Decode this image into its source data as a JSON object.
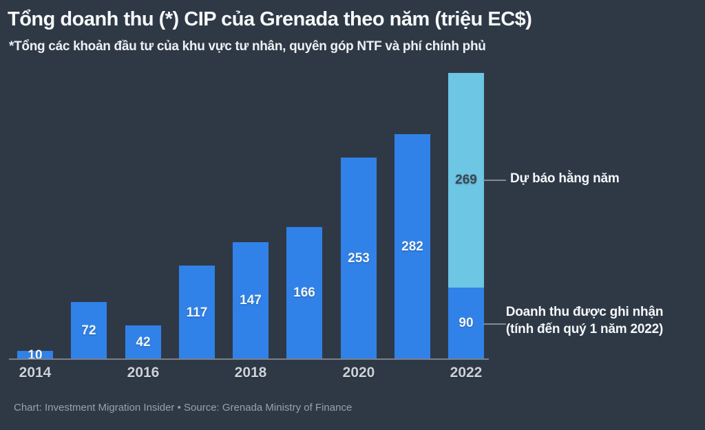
{
  "colors": {
    "background": "#2f3946",
    "bar_recorded": "#3082e8",
    "bar_forecast": "#6cc6e4",
    "axis_line": "#79808c",
    "connector": "#848b96",
    "value_label_on_blue": "#f4f6f8",
    "value_label_on_light": "#3c4654",
    "tick_label": "#ccd2d8",
    "footer_text": "#99a0a9"
  },
  "chart_data": {
    "type": "bar",
    "stacked": true,
    "grid": false,
    "title": "Tổng doanh thu (*) CIP của Grenada theo năm (triệu EC$)",
    "subtitle": "*Tổng các khoản đầu tư của khu vực tư nhân, quyên góp NTF và phí chính phủ",
    "source_line": "Chart: Investment Migration Insider • Source: Grenada Ministry of Finance",
    "categories": [
      "2014",
      "2015",
      "2016",
      "2017",
      "2018",
      "2019",
      "2020",
      "2021",
      "2022"
    ],
    "series": [
      {
        "name": "Doanh thu được ghi nhận (tính đến quý 1 năm 2022)",
        "key": "recorded",
        "color": "#3082e8",
        "label_color": "#f4f6f8",
        "values": [
          10,
          72,
          42,
          117,
          147,
          166,
          253,
          282,
          90
        ]
      },
      {
        "name": "Dự báo hằng năm",
        "key": "forecast",
        "color": "#6cc6e4",
        "label_color": "#3c4654",
        "values": [
          null,
          null,
          null,
          null,
          null,
          null,
          null,
          null,
          269
        ]
      }
    ],
    "x_tick_labels": [
      "2014",
      "2016",
      "2018",
      "2020",
      "2022"
    ],
    "ylim": [
      0,
      370
    ],
    "legend_position": "none",
    "annotations": [
      {
        "text": "Dự báo hằng năm",
        "target": "2022 forecast segment"
      },
      {
        "text_lines": [
          "Doanh thu được ghi nhận",
          "(tính đến quý 1 năm 2022)"
        ],
        "target": "2022 recorded segment"
      }
    ]
  }
}
